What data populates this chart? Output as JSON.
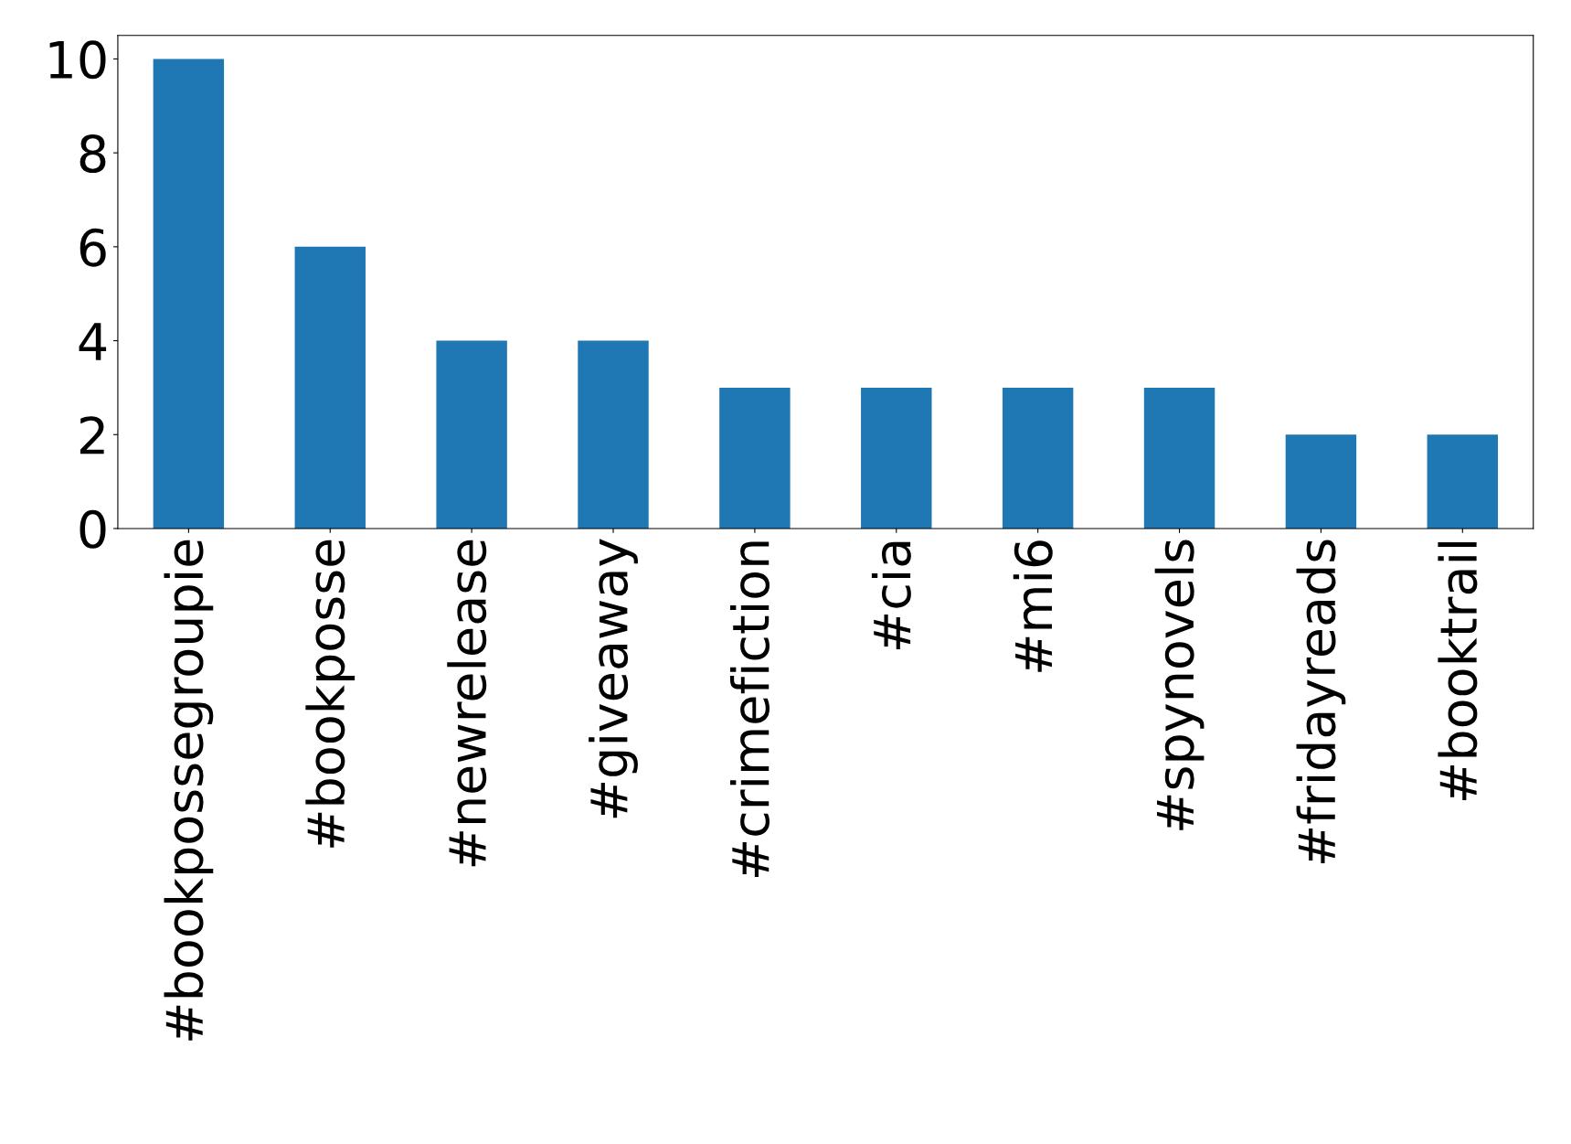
{
  "chart_data": {
    "type": "bar",
    "categories": [
      "#bookpossegroupie",
      "#bookposse",
      "#newrelease",
      "#giveaway",
      "#crimefiction",
      "#cia",
      "#mi6",
      "#spynovels",
      "#fridayreads",
      "#booktrail"
    ],
    "values": [
      10,
      6,
      4,
      4,
      3,
      3,
      3,
      3,
      2,
      2
    ],
    "color": "#1f77b4",
    "ylim": [
      0,
      10.5
    ],
    "yticks": [
      0,
      2,
      4,
      6,
      8,
      10
    ],
    "grid": false
  }
}
